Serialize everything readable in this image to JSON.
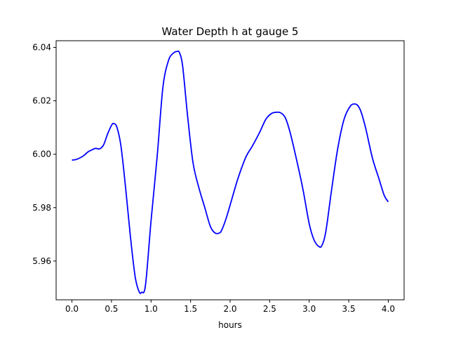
{
  "chart_data": {
    "type": "line",
    "title": "Water Depth h at gauge 5",
    "xlabel": "hours",
    "ylabel": "",
    "xlim": [
      -0.2,
      4.2
    ],
    "ylim": [
      5.9455,
      6.0425
    ],
    "xticks": [
      0.0,
      0.5,
      1.0,
      1.5,
      2.0,
      2.5,
      3.0,
      3.5,
      4.0
    ],
    "xtick_labels": [
      "0.0",
      "0.5",
      "1.0",
      "1.5",
      "2.0",
      "2.5",
      "3.0",
      "3.5",
      "4.0"
    ],
    "yticks": [
      5.96,
      5.98,
      6.0,
      6.02,
      6.04
    ],
    "ytick_labels": [
      "5.96",
      "5.98",
      "6.00",
      "6.02",
      "6.04"
    ],
    "grid": false,
    "series": [
      {
        "color": "#0000ff",
        "x": [
          0.0,
          0.05,
          0.1,
          0.15,
          0.2,
          0.25,
          0.3,
          0.35,
          0.4,
          0.45,
          0.5,
          0.53,
          0.57,
          0.62,
          0.68,
          0.74,
          0.8,
          0.85,
          0.88,
          0.93,
          1.0,
          1.08,
          1.15,
          1.22,
          1.28,
          1.33,
          1.36,
          1.4,
          1.46,
          1.53,
          1.6,
          1.68,
          1.75,
          1.81,
          1.87,
          1.9,
          1.95,
          2.02,
          2.1,
          2.2,
          2.28,
          2.37,
          2.45,
          2.52,
          2.58,
          2.64,
          2.7,
          2.76,
          2.84,
          2.92,
          3.0,
          3.06,
          3.12,
          3.16,
          3.21,
          3.28,
          3.36,
          3.44,
          3.52,
          3.58,
          3.62,
          3.66,
          3.72,
          3.8,
          3.88,
          3.95,
          4.0
        ],
        "y": [
          5.9978,
          5.998,
          5.9986,
          5.9995,
          6.0008,
          6.0016,
          6.0022,
          6.002,
          6.0035,
          6.0075,
          6.0108,
          6.0115,
          6.01,
          6.003,
          5.987,
          5.969,
          5.954,
          5.9485,
          5.9483,
          5.951,
          5.975,
          6.0,
          6.025,
          6.035,
          6.0378,
          6.0385,
          6.038,
          6.033,
          6.015,
          5.997,
          5.988,
          5.98,
          5.973,
          5.9705,
          5.9706,
          5.972,
          5.976,
          5.983,
          5.991,
          5.999,
          6.003,
          6.008,
          6.013,
          6.0152,
          6.0157,
          6.0155,
          6.0135,
          6.008,
          5.998,
          5.987,
          5.974,
          5.968,
          5.9655,
          5.9658,
          5.971,
          5.986,
          6.002,
          6.013,
          6.018,
          6.0188,
          6.018,
          6.0155,
          6.009,
          5.9985,
          5.991,
          5.9845,
          5.9822
        ]
      }
    ]
  }
}
